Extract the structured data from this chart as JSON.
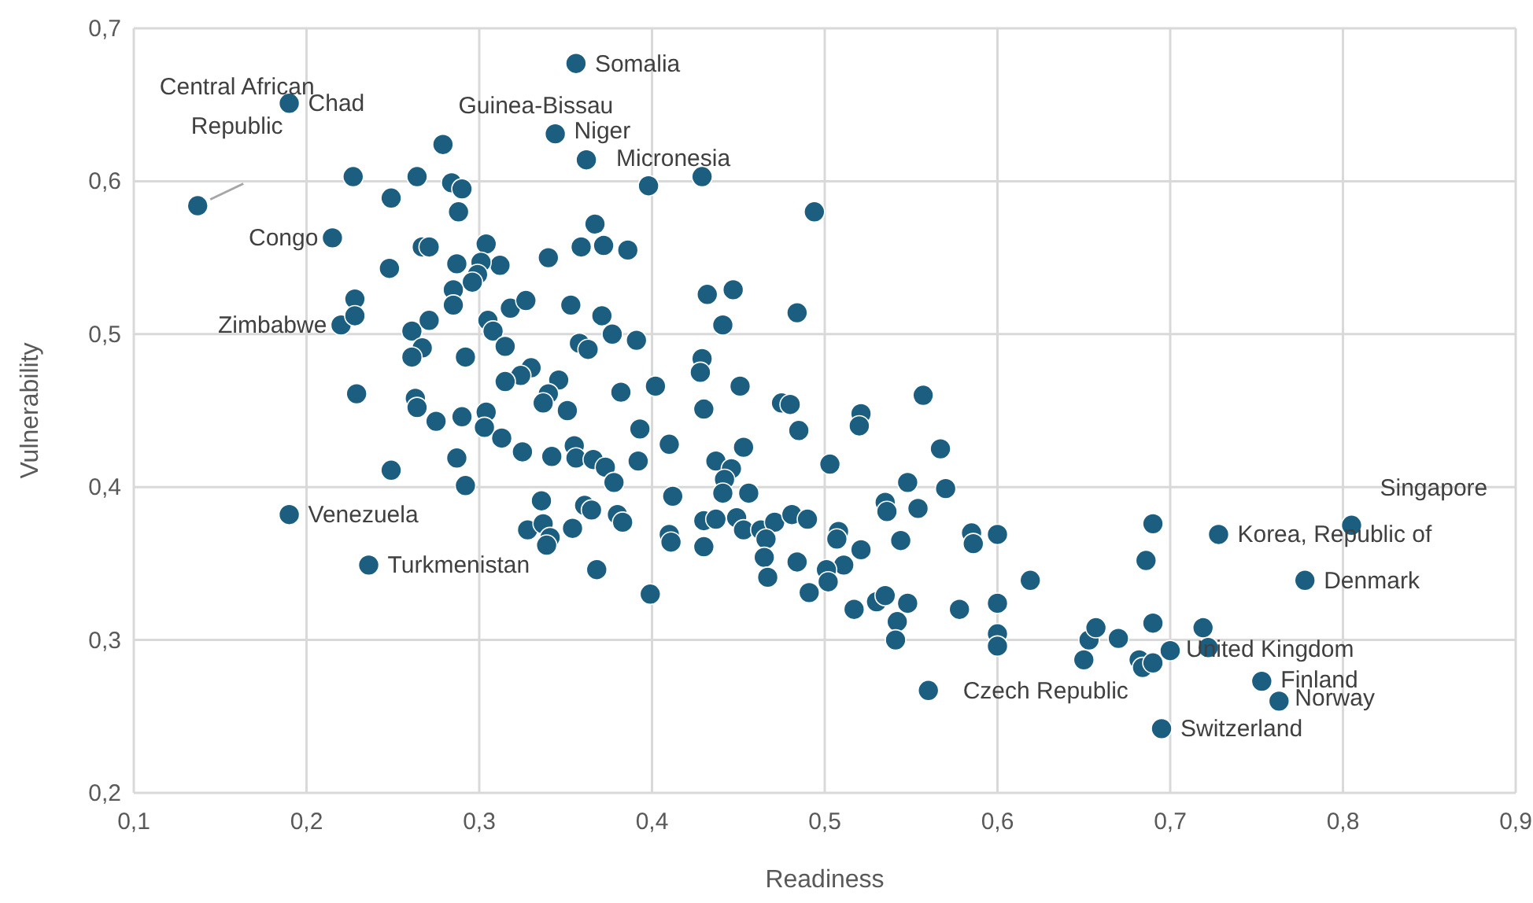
{
  "chart_data": {
    "type": "scatter",
    "xlabel": "Readiness",
    "ylabel": "Vulnerability",
    "xlim": [
      0.1,
      0.9
    ],
    "ylim": [
      0.2,
      0.7
    ],
    "xticks": [
      {
        "value": 0.1,
        "label": "0,1"
      },
      {
        "value": 0.2,
        "label": "0,2"
      },
      {
        "value": 0.3,
        "label": "0,3"
      },
      {
        "value": 0.4,
        "label": "0,4"
      },
      {
        "value": 0.5,
        "label": "0,5"
      },
      {
        "value": 0.6,
        "label": "0,6"
      },
      {
        "value": 0.7,
        "label": "0,7"
      },
      {
        "value": 0.8,
        "label": "0,8"
      },
      {
        "value": 0.9,
        "label": "0,9"
      }
    ],
    "yticks": [
      {
        "value": 0.2,
        "label": "0,2"
      },
      {
        "value": 0.3,
        "label": "0,3"
      },
      {
        "value": 0.4,
        "label": "0,4"
      },
      {
        "value": 0.5,
        "label": "0,5"
      },
      {
        "value": 0.6,
        "label": "0,6"
      },
      {
        "value": 0.7,
        "label": "0,7"
      }
    ],
    "grid": true,
    "marker": "circle",
    "series": [
      {
        "color": "#1b5e80",
        "x": [
          0.19,
          0.137,
          0.215,
          0.22,
          0.19,
          0.236,
          0.356,
          0.279,
          0.344,
          0.362,
          0.805,
          0.728,
          0.778,
          0.7,
          0.753,
          0.763,
          0.695,
          0.56,
          0.227,
          0.249,
          0.264,
          0.284,
          0.29,
          0.288,
          0.248,
          0.267,
          0.271,
          0.304,
          0.287,
          0.312,
          0.301,
          0.299,
          0.296,
          0.285,
          0.285,
          0.34,
          0.359,
          0.367,
          0.372,
          0.386,
          0.398,
          0.429,
          0.494,
          0.228,
          0.228,
          0.261,
          0.271,
          0.267,
          0.261,
          0.292,
          0.305,
          0.308,
          0.318,
          0.327,
          0.315,
          0.33,
          0.324,
          0.315,
          0.353,
          0.358,
          0.363,
          0.371,
          0.377,
          0.391,
          0.346,
          0.34,
          0.337,
          0.351,
          0.382,
          0.402,
          0.429,
          0.428,
          0.432,
          0.447,
          0.441,
          0.484,
          0.451,
          0.43,
          0.475,
          0.48,
          0.485,
          0.521,
          0.52,
          0.557,
          0.229,
          0.263,
          0.264,
          0.275,
          0.29,
          0.304,
          0.303,
          0.313,
          0.325,
          0.342,
          0.355,
          0.356,
          0.366,
          0.373,
          0.378,
          0.393,
          0.392,
          0.249,
          0.287,
          0.292,
          0.336,
          0.361,
          0.365,
          0.38,
          0.383,
          0.354,
          0.328,
          0.337,
          0.341,
          0.339,
          0.368,
          0.399,
          0.41,
          0.412,
          0.41,
          0.411,
          0.43,
          0.43,
          0.437,
          0.449,
          0.437,
          0.446,
          0.442,
          0.441,
          0.456,
          0.453,
          0.453,
          0.463,
          0.471,
          0.481,
          0.49,
          0.466,
          0.465,
          0.467,
          0.484,
          0.491,
          0.503,
          0.508,
          0.507,
          0.521,
          0.511,
          0.501,
          0.502,
          0.517,
          0.53,
          0.535,
          0.542,
          0.541,
          0.548,
          0.544,
          0.535,
          0.536,
          0.548,
          0.554,
          0.567,
          0.57,
          0.578,
          0.585,
          0.586,
          0.6,
          0.6,
          0.6,
          0.6,
          0.619,
          0.65,
          0.653,
          0.657,
          0.67,
          0.682,
          0.684,
          0.69,
          0.69,
          0.686,
          0.69,
          0.719,
          0.722
        ],
        "values": [
          0.651,
          0.584,
          0.563,
          0.506,
          0.382,
          0.349,
          0.677,
          0.624,
          0.631,
          0.614,
          0.375,
          0.369,
          0.339,
          0.293,
          0.273,
          0.26,
          0.242,
          0.267,
          0.603,
          0.589,
          0.603,
          0.599,
          0.595,
          0.58,
          0.543,
          0.557,
          0.557,
          0.559,
          0.546,
          0.545,
          0.547,
          0.539,
          0.534,
          0.529,
          0.519,
          0.55,
          0.557,
          0.572,
          0.558,
          0.555,
          0.597,
          0.603,
          0.58,
          0.523,
          0.512,
          0.502,
          0.509,
          0.491,
          0.485,
          0.485,
          0.509,
          0.502,
          0.517,
          0.522,
          0.492,
          0.478,
          0.473,
          0.469,
          0.519,
          0.494,
          0.49,
          0.512,
          0.5,
          0.496,
          0.47,
          0.461,
          0.455,
          0.45,
          0.462,
          0.466,
          0.484,
          0.475,
          0.526,
          0.529,
          0.506,
          0.514,
          0.466,
          0.451,
          0.455,
          0.454,
          0.437,
          0.448,
          0.44,
          0.46,
          0.461,
          0.458,
          0.452,
          0.443,
          0.446,
          0.449,
          0.439,
          0.432,
          0.423,
          0.42,
          0.427,
          0.419,
          0.418,
          0.413,
          0.403,
          0.438,
          0.417,
          0.411,
          0.419,
          0.401,
          0.391,
          0.388,
          0.385,
          0.382,
          0.377,
          0.373,
          0.372,
          0.376,
          0.367,
          0.362,
          0.346,
          0.33,
          0.428,
          0.394,
          0.369,
          0.364,
          0.361,
          0.378,
          0.379,
          0.38,
          0.417,
          0.412,
          0.405,
          0.396,
          0.396,
          0.426,
          0.372,
          0.372,
          0.377,
          0.382,
          0.379,
          0.366,
          0.354,
          0.341,
          0.351,
          0.331,
          0.415,
          0.371,
          0.366,
          0.359,
          0.349,
          0.346,
          0.338,
          0.32,
          0.325,
          0.329,
          0.312,
          0.3,
          0.324,
          0.365,
          0.39,
          0.384,
          0.403,
          0.386,
          0.425,
          0.399,
          0.32,
          0.37,
          0.363,
          0.369,
          0.324,
          0.304,
          0.296,
          0.339,
          0.287,
          0.3,
          0.308,
          0.301,
          0.287,
          0.282,
          0.285,
          0.376,
          0.352,
          0.311,
          0.308,
          0.295
        ]
      }
    ],
    "annotations": [
      {
        "text": "Chad",
        "x": 0.19,
        "y": 0.651
      },
      {
        "text": "Central African Republic",
        "x": 0.137,
        "y": 0.584
      },
      {
        "text": "Congo",
        "x": 0.215,
        "y": 0.563
      },
      {
        "text": "Zimbabwe",
        "x": 0.22,
        "y": 0.506
      },
      {
        "text": "Venezuela",
        "x": 0.19,
        "y": 0.382
      },
      {
        "text": "Turkmenistan",
        "x": 0.236,
        "y": 0.349
      },
      {
        "text": "Somalia",
        "x": 0.356,
        "y": 0.677
      },
      {
        "text": "Guinea-Bissau",
        "x": 0.279,
        "y": 0.624
      },
      {
        "text": "Niger",
        "x": 0.344,
        "y": 0.631
      },
      {
        "text": "Micronesia",
        "x": 0.362,
        "y": 0.614
      },
      {
        "text": "Singapore",
        "x": 0.805,
        "y": 0.375
      },
      {
        "text": "Korea, Republic of",
        "x": 0.728,
        "y": 0.369
      },
      {
        "text": "Denmark",
        "x": 0.778,
        "y": 0.339
      },
      {
        "text": "United Kingdom",
        "x": 0.7,
        "y": 0.293
      },
      {
        "text": "Finland",
        "x": 0.753,
        "y": 0.273
      },
      {
        "text": "Norway",
        "x": 0.763,
        "y": 0.26
      },
      {
        "text": "Switzerland",
        "x": 0.695,
        "y": 0.242
      },
      {
        "text": "Czech Republic",
        "x": 0.56,
        "y": 0.267
      }
    ]
  }
}
